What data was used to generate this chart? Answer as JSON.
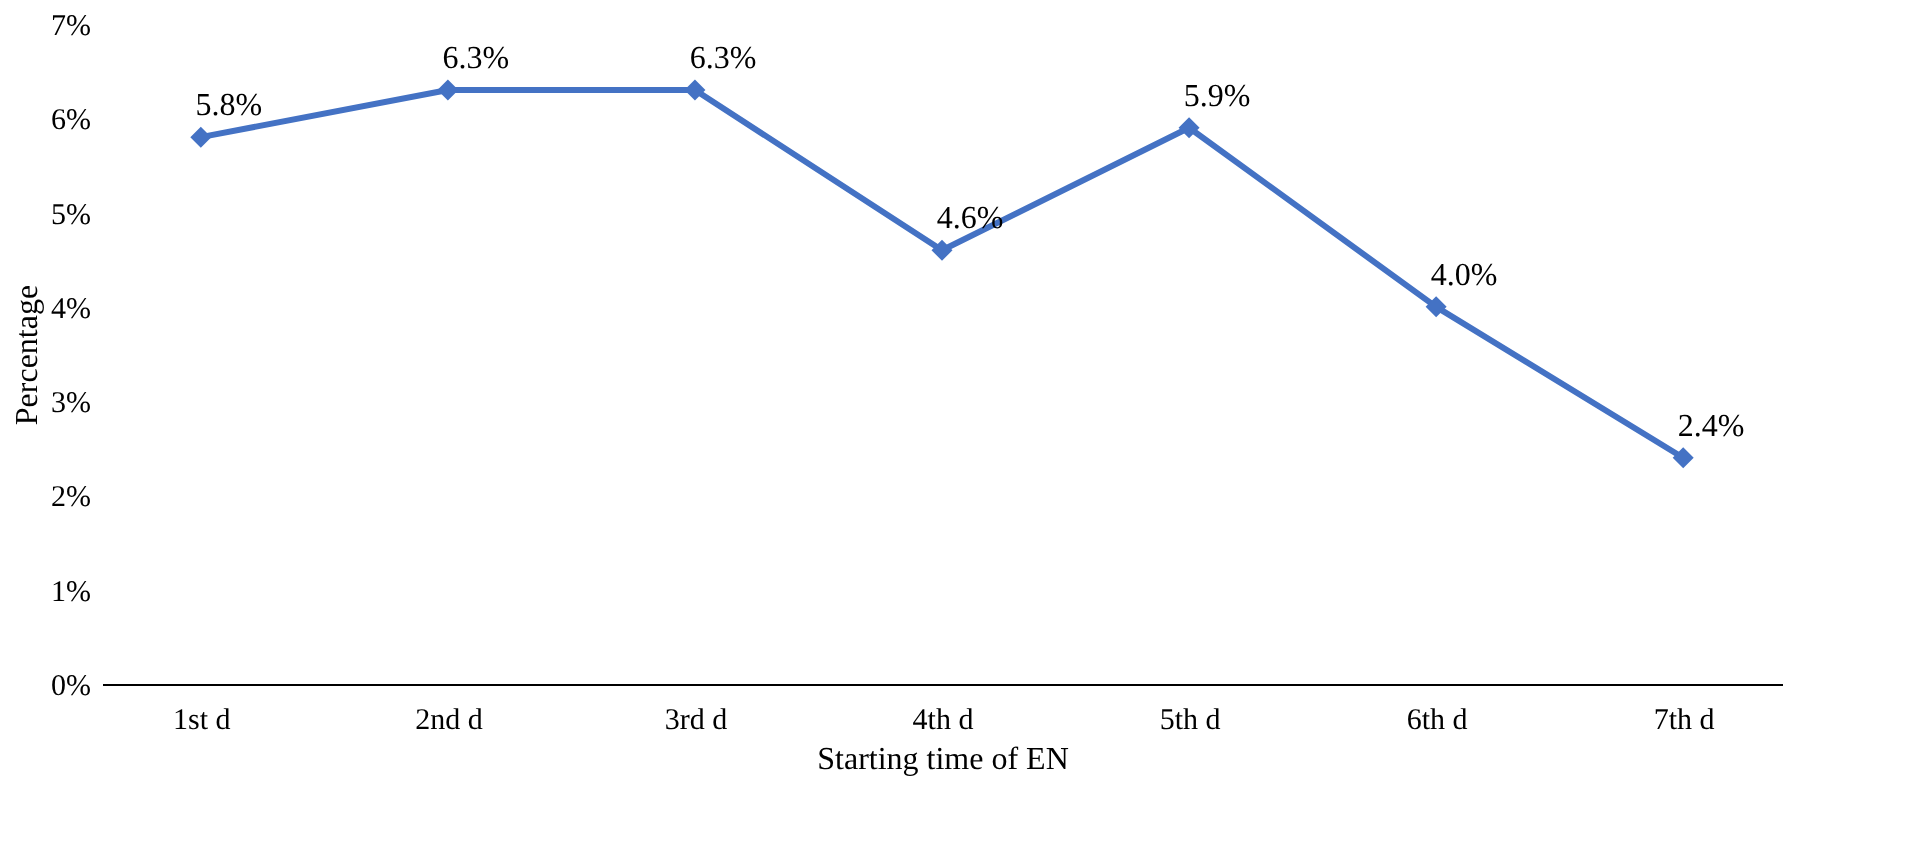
{
  "chart_data": {
    "type": "line",
    "xlabel": "Starting time of EN",
    "ylabel": "Percentage",
    "categories": [
      "1st d",
      "2nd d",
      "3rd d",
      "4th d",
      "5th d",
      "6th d",
      "7th d"
    ],
    "series": [
      {
        "color": "#4472c4",
        "values": [
          5.8,
          6.3,
          6.3,
          4.6,
          5.9,
          4.0,
          2.4
        ],
        "value_labels": [
          "5.8%",
          "6.3%",
          "6.3%",
          "4.6%",
          "5.9%",
          "4.0%",
          "2.4%"
        ]
      }
    ],
    "ylim": [
      0,
      7
    ],
    "yticks": [
      {
        "value": 0,
        "label": "0%"
      },
      {
        "value": 1,
        "label": "1%"
      },
      {
        "value": 2,
        "label": "2%"
      },
      {
        "value": 3,
        "label": "3%"
      },
      {
        "value": 4,
        "label": "4%"
      },
      {
        "value": 5,
        "label": "5%"
      },
      {
        "value": 6,
        "label": "6%"
      },
      {
        "value": 7,
        "label": "7%"
      }
    ],
    "grid": false,
    "marker": "diamond",
    "line_style": "solid"
  }
}
